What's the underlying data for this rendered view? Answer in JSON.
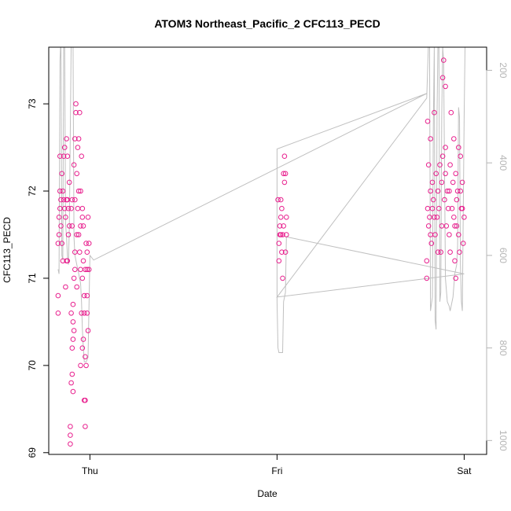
{
  "chart_data": {
    "type": "scatter",
    "title": "ATOM3 Northeast_Pacific_2 CFC113_PECD",
    "xlabel": "Date",
    "ylabel": "CFC113_PECD",
    "x_tick_labels": [
      "Thu",
      "Fri",
      "Sat"
    ],
    "x_ticks_days": [
      1.0,
      2.0,
      3.0
    ],
    "xlim_days": [
      0.78,
      3.12
    ],
    "ylim": [
      68.98,
      73.65
    ],
    "y_ticks": [
      69,
      70,
      71,
      72,
      73
    ],
    "y2_ticks": [
      200,
      400,
      600,
      800,
      1000
    ],
    "y2lim_inverted": [
      150,
      1030
    ],
    "colors": {
      "points": "#e8208e",
      "depth_line": "#c0c0c0",
      "axes": "#000000",
      "right_axis": "#b5b5b5"
    },
    "series": [
      {
        "label": "",
        "points": [
          [
            0.83,
            70.6
          ],
          [
            0.83,
            70.8
          ],
          [
            0.83,
            71.4
          ],
          [
            0.835,
            71.5
          ],
          [
            0.835,
            71.7
          ],
          [
            0.84,
            71.8
          ],
          [
            0.84,
            72.0
          ],
          [
            0.84,
            72.4
          ],
          [
            0.845,
            71.6
          ],
          [
            0.845,
            71.9
          ],
          [
            0.85,
            71.4
          ],
          [
            0.85,
            72.2
          ],
          [
            0.855,
            72.0
          ],
          [
            0.855,
            71.2
          ],
          [
            0.86,
            71.9
          ],
          [
            0.86,
            72.4
          ],
          [
            0.865,
            72.5
          ],
          [
            0.865,
            71.8
          ],
          [
            0.87,
            70.9
          ],
          [
            0.87,
            71.7
          ],
          [
            0.875,
            72.6
          ],
          [
            0.875,
            71.9
          ],
          [
            0.88,
            72.4
          ],
          [
            0.88,
            71.2
          ],
          [
            0.885,
            71.5
          ],
          [
            0.885,
            71.8
          ],
          [
            0.89,
            72.1
          ],
          [
            0.89,
            71.6
          ],
          [
            0.895,
            69.1
          ],
          [
            0.895,
            69.2
          ],
          [
            0.895,
            69.3
          ],
          [
            0.9,
            70.6
          ],
          [
            0.9,
            71.8
          ],
          [
            0.905,
            71.6
          ],
          [
            0.905,
            71.9
          ],
          [
            0.91,
            70.7
          ],
          [
            0.91,
            70.3
          ],
          [
            0.915,
            71.0
          ],
          [
            0.915,
            72.3
          ],
          [
            0.92,
            72.6
          ],
          [
            0.92,
            71.3
          ],
          [
            0.925,
            73.0
          ],
          [
            0.925,
            72.9
          ],
          [
            0.93,
            72.2
          ],
          [
            0.93,
            71.5
          ],
          [
            0.935,
            72.5
          ],
          [
            0.935,
            71.8
          ],
          [
            0.94,
            72.6
          ],
          [
            0.94,
            71.5
          ],
          [
            0.945,
            72.9
          ],
          [
            0.945,
            71.3
          ],
          [
            0.95,
            72.0
          ],
          [
            0.95,
            71.6
          ],
          [
            0.955,
            72.4
          ],
          [
            0.955,
            70.6
          ],
          [
            0.96,
            71.8
          ],
          [
            0.96,
            71.0
          ],
          [
            0.965,
            70.3
          ],
          [
            0.965,
            71.2
          ],
          [
            0.97,
            69.6
          ],
          [
            0.97,
            70.8
          ],
          [
            0.975,
            69.3
          ],
          [
            0.975,
            70.1
          ],
          [
            0.98,
            70.0
          ],
          [
            0.98,
            71.4
          ],
          [
            0.985,
            71.3
          ],
          [
            0.985,
            70.8
          ],
          [
            0.99,
            71.7
          ],
          [
            0.99,
            70.4
          ],
          [
            0.995,
            71.1
          ],
          [
            0.995,
            71.4
          ],
          [
            0.875,
            71.2
          ],
          [
            0.905,
            70.2
          ],
          [
            0.905,
            69.9
          ],
          [
            0.9,
            69.8
          ],
          [
            0.91,
            69.7
          ],
          [
            0.91,
            70.5
          ],
          [
            0.915,
            70.4
          ],
          [
            0.92,
            71.1
          ],
          [
            0.93,
            70.9
          ],
          [
            0.95,
            71.1
          ],
          [
            0.96,
            70.2
          ],
          [
            0.965,
            71.6
          ],
          [
            0.97,
            70.6
          ],
          [
            0.975,
            71.1
          ],
          [
            0.985,
            70.6
          ],
          [
            0.975,
            69.6
          ],
          [
            0.985,
            71.1
          ],
          [
            0.88,
            71.9
          ],
          [
            0.92,
            71.9
          ],
          [
            0.94,
            72.0
          ],
          [
            0.96,
            71.7
          ],
          [
            0.95,
            70.0
          ],
          [
            2.01,
            71.2
          ],
          [
            2.01,
            71.4
          ],
          [
            2.015,
            71.5
          ],
          [
            2.015,
            71.6
          ],
          [
            2.02,
            71.7
          ],
          [
            2.02,
            71.9
          ],
          [
            2.025,
            71.3
          ],
          [
            2.03,
            71.5
          ],
          [
            2.035,
            72.2
          ],
          [
            2.035,
            71.6
          ],
          [
            2.04,
            72.1
          ],
          [
            2.04,
            72.4
          ],
          [
            2.045,
            72.2
          ],
          [
            2.05,
            71.5
          ],
          [
            2.05,
            71.7
          ],
          [
            2.045,
            71.3
          ],
          [
            2.025,
            71.8
          ],
          [
            2.03,
            71.0
          ],
          [
            2.005,
            71.9
          ],
          [
            2.02,
            71.5
          ],
          [
            2.8,
            71.0
          ],
          [
            2.8,
            71.2
          ],
          [
            2.805,
            71.8
          ],
          [
            2.805,
            72.8
          ],
          [
            2.81,
            72.3
          ],
          [
            2.81,
            71.6
          ],
          [
            2.815,
            71.7
          ],
          [
            2.82,
            72.6
          ],
          [
            2.82,
            72.0
          ],
          [
            2.825,
            71.4
          ],
          [
            2.83,
            72.1
          ],
          [
            2.835,
            71.9
          ],
          [
            2.84,
            72.9
          ],
          [
            2.845,
            71.5
          ],
          [
            2.85,
            72.2
          ],
          [
            2.855,
            71.7
          ],
          [
            2.86,
            72.0
          ],
          [
            2.865,
            71.8
          ],
          [
            2.87,
            72.3
          ],
          [
            2.875,
            71.3
          ],
          [
            2.88,
            72.1
          ],
          [
            2.885,
            73.3
          ],
          [
            2.885,
            72.4
          ],
          [
            2.89,
            73.5
          ],
          [
            2.895,
            71.9
          ],
          [
            2.9,
            72.2
          ],
          [
            2.905,
            71.6
          ],
          [
            2.91,
            72.0
          ],
          [
            2.915,
            71.8
          ],
          [
            2.92,
            71.5
          ],
          [
            2.925,
            72.3
          ],
          [
            2.93,
            72.9
          ],
          [
            2.935,
            71.8
          ],
          [
            2.94,
            72.1
          ],
          [
            2.945,
            71.7
          ],
          [
            2.95,
            71.6
          ],
          [
            2.955,
            72.2
          ],
          [
            2.96,
            71.9
          ],
          [
            2.965,
            72.0
          ],
          [
            2.97,
            71.5
          ],
          [
            2.975,
            71.3
          ],
          [
            2.98,
            72.4
          ],
          [
            2.985,
            71.8
          ],
          [
            2.99,
            72.1
          ],
          [
            2.995,
            71.4
          ],
          [
            3.0,
            71.7
          ],
          [
            2.97,
            72.5
          ],
          [
            2.955,
            71.0
          ],
          [
            2.925,
            71.3
          ],
          [
            2.945,
            72.6
          ],
          [
            2.9,
            72.5
          ],
          [
            2.86,
            71.3
          ],
          [
            2.84,
            71.7
          ],
          [
            2.82,
            71.5
          ],
          [
            2.83,
            71.8
          ],
          [
            2.88,
            71.6
          ],
          [
            2.92,
            72.0
          ],
          [
            2.96,
            71.6
          ],
          [
            2.99,
            71.8
          ],
          [
            2.95,
            71.2
          ],
          [
            2.9,
            73.2
          ],
          [
            2.98,
            72.0
          ]
        ]
      }
    ],
    "depth_line_y2": [
      [
        0.83,
        630
      ],
      [
        0.835,
        640
      ],
      [
        0.84,
        180
      ],
      [
        0.845,
        130
      ],
      [
        0.85,
        600
      ],
      [
        0.855,
        610
      ],
      [
        0.86,
        140
      ],
      [
        0.865,
        130
      ],
      [
        0.87,
        530
      ],
      [
        0.875,
        560
      ],
      [
        0.88,
        600
      ],
      [
        0.885,
        620
      ],
      [
        0.89,
        540
      ],
      [
        0.9,
        130
      ],
      [
        0.91,
        140
      ],
      [
        0.915,
        560
      ],
      [
        0.92,
        600
      ],
      [
        0.925,
        610
      ],
      [
        0.93,
        620
      ],
      [
        0.935,
        630
      ],
      [
        0.94,
        640
      ],
      [
        0.945,
        650
      ],
      [
        0.95,
        660
      ],
      [
        0.955,
        700
      ],
      [
        0.96,
        760
      ],
      [
        0.965,
        800
      ],
      [
        0.97,
        830
      ],
      [
        0.975,
        830
      ],
      [
        0.98,
        830
      ],
      [
        0.99,
        820
      ],
      [
        1.0,
        600
      ],
      [
        1.02,
        610
      ],
      [
        2.8,
        250
      ],
      [
        2.0,
        370
      ],
      [
        2.0,
        700
      ],
      [
        2.005,
        800
      ],
      [
        2.01,
        810
      ],
      [
        2.015,
        810
      ],
      [
        2.02,
        810
      ],
      [
        2.025,
        810
      ],
      [
        2.03,
        810
      ],
      [
        2.035,
        700
      ],
      [
        2.04,
        690
      ],
      [
        2.045,
        680
      ],
      [
        2.05,
        560
      ],
      [
        3.0,
        640
      ],
      [
        2.0,
        690
      ],
      [
        2.8,
        260
      ],
      [
        2.81,
        130
      ],
      [
        2.815,
        140
      ],
      [
        2.82,
        720
      ],
      [
        2.83,
        690
      ],
      [
        2.835,
        320
      ],
      [
        2.84,
        150
      ],
      [
        2.845,
        740
      ],
      [
        2.85,
        760
      ],
      [
        2.855,
        300
      ],
      [
        2.86,
        140
      ],
      [
        2.865,
        130
      ],
      [
        2.87,
        700
      ],
      [
        2.875,
        680
      ],
      [
        2.88,
        300
      ],
      [
        2.885,
        150
      ],
      [
        2.89,
        180
      ],
      [
        2.9,
        650
      ],
      [
        2.91,
        700
      ],
      [
        2.92,
        710
      ],
      [
        2.925,
        720
      ],
      [
        2.93,
        710
      ],
      [
        2.94,
        690
      ],
      [
        2.95,
        640
      ],
      [
        2.96,
        620
      ],
      [
        2.965,
        580
      ],
      [
        2.97,
        280
      ],
      [
        2.975,
        300
      ],
      [
        2.98,
        620
      ],
      [
        2.985,
        700
      ],
      [
        2.99,
        720
      ],
      [
        3.0,
        300
      ],
      [
        3.005,
        140
      ],
      [
        3.01,
        150
      ]
    ]
  }
}
